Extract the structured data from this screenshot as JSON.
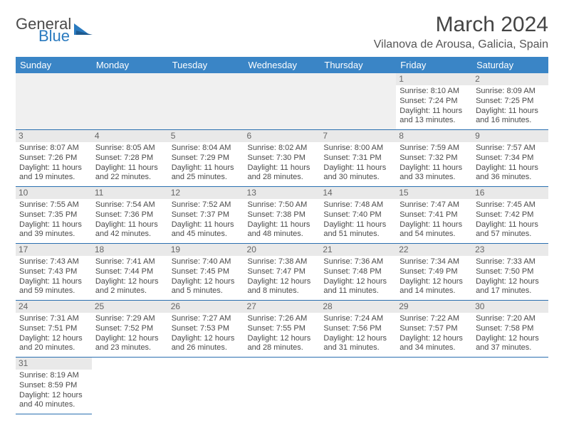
{
  "logo": {
    "text1": "General",
    "text2": "Blue"
  },
  "header": {
    "title": "March 2024",
    "location": "Vilanova de Arousa, Galicia, Spain"
  },
  "colors": {
    "header_bg": "#3a85c6",
    "header_fg": "#ffffff",
    "cell_border": "#2a6fb0",
    "daynum_bg": "#e9e9e9",
    "empty_bg": "#f0f0f0",
    "text": "#4a4a4a"
  },
  "typography": {
    "title_fontsize": 30,
    "location_fontsize": 16,
    "dayheader_fontsize": 13,
    "cell_fontsize": 11
  },
  "calendar": {
    "day_headers": [
      "Sunday",
      "Monday",
      "Tuesday",
      "Wednesday",
      "Thursday",
      "Friday",
      "Saturday"
    ],
    "weeks": [
      [
        null,
        null,
        null,
        null,
        null,
        {
          "n": "1",
          "sr": "Sunrise: 8:10 AM",
          "ss": "Sunset: 7:24 PM",
          "dl": "Daylight: 11 hours and 13 minutes."
        },
        {
          "n": "2",
          "sr": "Sunrise: 8:09 AM",
          "ss": "Sunset: 7:25 PM",
          "dl": "Daylight: 11 hours and 16 minutes."
        }
      ],
      [
        {
          "n": "3",
          "sr": "Sunrise: 8:07 AM",
          "ss": "Sunset: 7:26 PM",
          "dl": "Daylight: 11 hours and 19 minutes."
        },
        {
          "n": "4",
          "sr": "Sunrise: 8:05 AM",
          "ss": "Sunset: 7:28 PM",
          "dl": "Daylight: 11 hours and 22 minutes."
        },
        {
          "n": "5",
          "sr": "Sunrise: 8:04 AM",
          "ss": "Sunset: 7:29 PM",
          "dl": "Daylight: 11 hours and 25 minutes."
        },
        {
          "n": "6",
          "sr": "Sunrise: 8:02 AM",
          "ss": "Sunset: 7:30 PM",
          "dl": "Daylight: 11 hours and 28 minutes."
        },
        {
          "n": "7",
          "sr": "Sunrise: 8:00 AM",
          "ss": "Sunset: 7:31 PM",
          "dl": "Daylight: 11 hours and 30 minutes."
        },
        {
          "n": "8",
          "sr": "Sunrise: 7:59 AM",
          "ss": "Sunset: 7:32 PM",
          "dl": "Daylight: 11 hours and 33 minutes."
        },
        {
          "n": "9",
          "sr": "Sunrise: 7:57 AM",
          "ss": "Sunset: 7:34 PM",
          "dl": "Daylight: 11 hours and 36 minutes."
        }
      ],
      [
        {
          "n": "10",
          "sr": "Sunrise: 7:55 AM",
          "ss": "Sunset: 7:35 PM",
          "dl": "Daylight: 11 hours and 39 minutes."
        },
        {
          "n": "11",
          "sr": "Sunrise: 7:54 AM",
          "ss": "Sunset: 7:36 PM",
          "dl": "Daylight: 11 hours and 42 minutes."
        },
        {
          "n": "12",
          "sr": "Sunrise: 7:52 AM",
          "ss": "Sunset: 7:37 PM",
          "dl": "Daylight: 11 hours and 45 minutes."
        },
        {
          "n": "13",
          "sr": "Sunrise: 7:50 AM",
          "ss": "Sunset: 7:38 PM",
          "dl": "Daylight: 11 hours and 48 minutes."
        },
        {
          "n": "14",
          "sr": "Sunrise: 7:48 AM",
          "ss": "Sunset: 7:40 PM",
          "dl": "Daylight: 11 hours and 51 minutes."
        },
        {
          "n": "15",
          "sr": "Sunrise: 7:47 AM",
          "ss": "Sunset: 7:41 PM",
          "dl": "Daylight: 11 hours and 54 minutes."
        },
        {
          "n": "16",
          "sr": "Sunrise: 7:45 AM",
          "ss": "Sunset: 7:42 PM",
          "dl": "Daylight: 11 hours and 57 minutes."
        }
      ],
      [
        {
          "n": "17",
          "sr": "Sunrise: 7:43 AM",
          "ss": "Sunset: 7:43 PM",
          "dl": "Daylight: 11 hours and 59 minutes."
        },
        {
          "n": "18",
          "sr": "Sunrise: 7:41 AM",
          "ss": "Sunset: 7:44 PM",
          "dl": "Daylight: 12 hours and 2 minutes."
        },
        {
          "n": "19",
          "sr": "Sunrise: 7:40 AM",
          "ss": "Sunset: 7:45 PM",
          "dl": "Daylight: 12 hours and 5 minutes."
        },
        {
          "n": "20",
          "sr": "Sunrise: 7:38 AM",
          "ss": "Sunset: 7:47 PM",
          "dl": "Daylight: 12 hours and 8 minutes."
        },
        {
          "n": "21",
          "sr": "Sunrise: 7:36 AM",
          "ss": "Sunset: 7:48 PM",
          "dl": "Daylight: 12 hours and 11 minutes."
        },
        {
          "n": "22",
          "sr": "Sunrise: 7:34 AM",
          "ss": "Sunset: 7:49 PM",
          "dl": "Daylight: 12 hours and 14 minutes."
        },
        {
          "n": "23",
          "sr": "Sunrise: 7:33 AM",
          "ss": "Sunset: 7:50 PM",
          "dl": "Daylight: 12 hours and 17 minutes."
        }
      ],
      [
        {
          "n": "24",
          "sr": "Sunrise: 7:31 AM",
          "ss": "Sunset: 7:51 PM",
          "dl": "Daylight: 12 hours and 20 minutes."
        },
        {
          "n": "25",
          "sr": "Sunrise: 7:29 AM",
          "ss": "Sunset: 7:52 PM",
          "dl": "Daylight: 12 hours and 23 minutes."
        },
        {
          "n": "26",
          "sr": "Sunrise: 7:27 AM",
          "ss": "Sunset: 7:53 PM",
          "dl": "Daylight: 12 hours and 26 minutes."
        },
        {
          "n": "27",
          "sr": "Sunrise: 7:26 AM",
          "ss": "Sunset: 7:55 PM",
          "dl": "Daylight: 12 hours and 28 minutes."
        },
        {
          "n": "28",
          "sr": "Sunrise: 7:24 AM",
          "ss": "Sunset: 7:56 PM",
          "dl": "Daylight: 12 hours and 31 minutes."
        },
        {
          "n": "29",
          "sr": "Sunrise: 7:22 AM",
          "ss": "Sunset: 7:57 PM",
          "dl": "Daylight: 12 hours and 34 minutes."
        },
        {
          "n": "30",
          "sr": "Sunrise: 7:20 AM",
          "ss": "Sunset: 7:58 PM",
          "dl": "Daylight: 12 hours and 37 minutes."
        }
      ],
      [
        {
          "n": "31",
          "sr": "Sunrise: 8:19 AM",
          "ss": "Sunset: 8:59 PM",
          "dl": "Daylight: 12 hours and 40 minutes."
        },
        null,
        null,
        null,
        null,
        null,
        null
      ]
    ]
  }
}
